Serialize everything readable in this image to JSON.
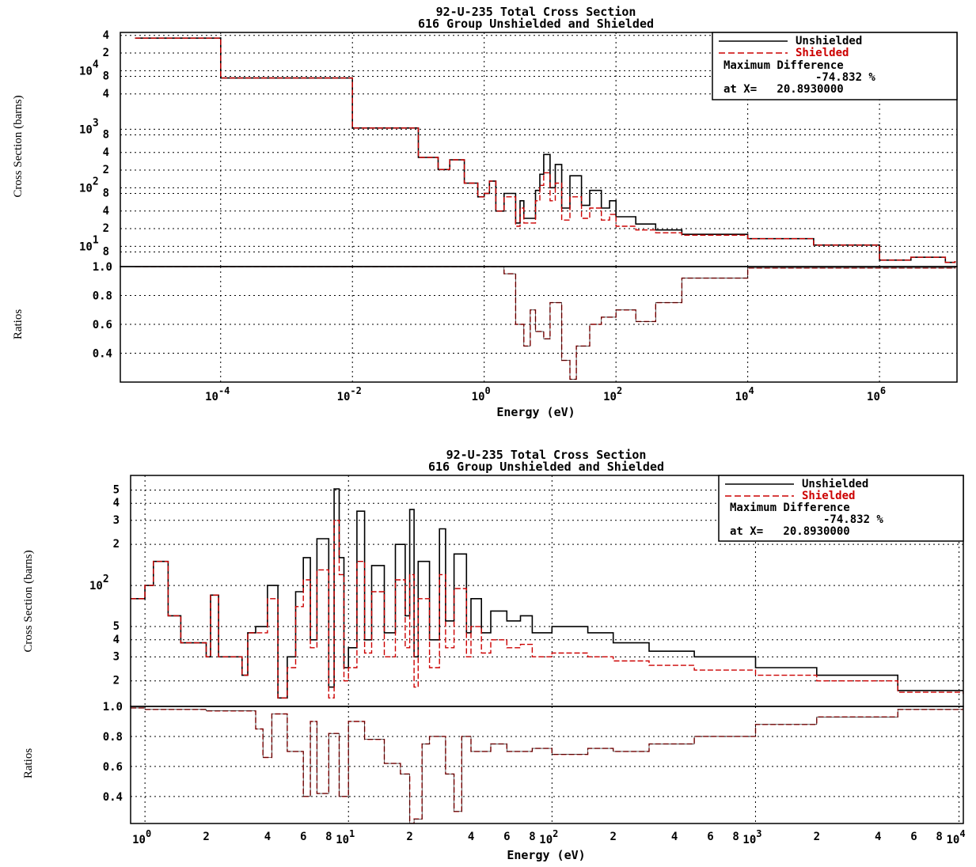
{
  "colors": {
    "unshielded": "#000000",
    "shielded": "#cc0000",
    "grid": "#000000"
  },
  "chart_data": [
    {
      "type": "line",
      "title": "92-U-235 Total Cross Section",
      "subtitle": "616 Group Unshielded and Shielded",
      "xlabel": "Energy (eV)",
      "ylabel": "Cross Section (barns)",
      "ratio_ylabel": "Ratios",
      "x_scale": "log",
      "y_scale": "log",
      "xlim": [
        3e-06,
        15000000
      ],
      "ylim": [
        4.5,
        45000
      ],
      "ratio_ylim": [
        0.2,
        1.0
      ],
      "grid": true,
      "legend_position": "top-right",
      "legend": {
        "unshielded": "Unshielded",
        "shielded": "Shielded",
        "line1": "Maximum Difference",
        "line2": "-74.832 %",
        "line3": "at X=   20.8930000"
      },
      "x_ticks": [
        {
          "base": "10",
          "exp": "-4",
          "v": 0.0001
        },
        {
          "base": "10",
          "exp": "-2",
          "v": 0.01
        },
        {
          "base": "10",
          "exp": "0",
          "v": 1
        },
        {
          "base": "10",
          "exp": "2",
          "v": 100
        },
        {
          "base": "10",
          "exp": "4",
          "v": 10000
        },
        {
          "base": "10",
          "exp": "6",
          "v": 1000000
        }
      ],
      "y_ticks": [
        {
          "base": "10",
          "exp": "1",
          "v": 10
        },
        {
          "base": "10",
          "exp": "2",
          "v": 100
        },
        {
          "base": "10",
          "exp": "3",
          "v": 1000
        },
        {
          "base": "10",
          "exp": "4",
          "v": 10000
        }
      ],
      "y_minor_labels": [
        {
          "t": "4",
          "v": 40000
        },
        {
          "t": "2",
          "v": 20000
        },
        {
          "t": "8",
          "v": 8000
        },
        {
          "t": "4",
          "v": 4000
        },
        {
          "t": "8",
          "v": 800
        },
        {
          "t": "4",
          "v": 400
        },
        {
          "t": "2",
          "v": 200
        },
        {
          "t": "8",
          "v": 80
        },
        {
          "t": "4",
          "v": 40
        },
        {
          "t": "2",
          "v": 20
        },
        {
          "t": "8",
          "v": 8
        }
      ],
      "ratio_ticks": [
        "1.0",
        "0.8",
        "0.6",
        "0.4"
      ],
      "ratio_tick_values": [
        1.0,
        0.8,
        0.6,
        0.4
      ],
      "series": [
        {
          "name": "Unshielded",
          "x": [
            5e-06,
            0.0001,
            0.01,
            0.1,
            0.2,
            0.3,
            0.5,
            0.8,
            1.0,
            1.2,
            1.5,
            2,
            3,
            3.5,
            4,
            6,
            7,
            8,
            10,
            12,
            15,
            20,
            30,
            40,
            60,
            80,
            100,
            200,
            400,
            1000,
            10000,
            100000,
            1000000,
            3000000,
            10000000,
            14000000
          ],
          "y": [
            36000,
            7500,
            1050,
            330,
            205,
            300,
            120,
            70,
            80,
            130,
            40,
            80,
            25,
            60,
            30,
            90,
            170,
            370,
            100,
            250,
            45,
            160,
            50,
            90,
            45,
            60,
            32,
            24,
            19,
            16,
            13.5,
            10.5,
            5.8,
            6.5,
            5.3,
            5.6
          ]
        },
        {
          "name": "Shielded",
          "x": [
            5e-06,
            0.0001,
            0.01,
            0.1,
            0.2,
            0.3,
            0.5,
            0.8,
            1.0,
            1.2,
            1.5,
            2,
            3,
            3.5,
            4,
            6,
            7,
            8,
            10,
            12,
            15,
            20,
            30,
            40,
            60,
            80,
            100,
            200,
            400,
            1000,
            10000,
            100000,
            1000000,
            3000000,
            10000000,
            14000000
          ],
          "y": [
            36000,
            7500,
            1050,
            330,
            205,
            300,
            120,
            70,
            80,
            130,
            40,
            70,
            22,
            45,
            25,
            60,
            110,
            180,
            60,
            120,
            28,
            70,
            30,
            45,
            28,
            35,
            22,
            19,
            17,
            15.5,
            13.5,
            10.5,
            5.8,
            6.5,
            5.3,
            5.6
          ]
        },
        {
          "name": "Ratio",
          "x": [
            5e-06,
            1,
            2,
            3,
            4,
            5,
            6,
            8,
            10,
            15,
            20,
            25,
            40,
            60,
            100,
            200,
            400,
            1000,
            10000,
            14000000
          ],
          "y": [
            1.0,
            1.0,
            0.95,
            0.6,
            0.45,
            0.7,
            0.55,
            0.5,
            0.75,
            0.35,
            0.22,
            0.45,
            0.6,
            0.65,
            0.7,
            0.62,
            0.75,
            0.92,
            0.99,
            1.0
          ]
        }
      ]
    },
    {
      "type": "line",
      "title": "92-U-235 Total Cross Section",
      "subtitle": "616 Group Unshielded and Shielded",
      "xlabel": "Energy (eV)",
      "ylabel": "Cross Section (barns)",
      "ratio_ylabel": "Ratios",
      "x_scale": "log",
      "y_scale": "log",
      "xlim": [
        0.85,
        10500
      ],
      "ylim": [
        13,
        640
      ],
      "ratio_ylim": [
        0.22,
        1.0
      ],
      "grid": true,
      "legend_position": "top-right",
      "legend": {
        "unshielded": "Unshielded",
        "shielded": "Shielded",
        "line1": "Maximum Difference",
        "line2": "-74.832 %",
        "line3": "at X=   20.8930000"
      },
      "x_ticks": [
        {
          "base": "10",
          "exp": "0",
          "v": 1
        },
        {
          "base": "10",
          "exp": "1",
          "v": 10
        },
        {
          "base": "10",
          "exp": "2",
          "v": 100
        },
        {
          "base": "10",
          "exp": "3",
          "v": 1000
        },
        {
          "base": "10",
          "exp": "4",
          "v": 10000
        }
      ],
      "x_minor_labels": [
        {
          "t": "2",
          "v": 2
        },
        {
          "t": "4",
          "v": 4
        },
        {
          "t": "6",
          "v": 6
        },
        {
          "t": "8",
          "v": 8
        },
        {
          "t": "2",
          "v": 20
        },
        {
          "t": "4",
          "v": 40
        },
        {
          "t": "6",
          "v": 60
        },
        {
          "t": "8",
          "v": 80
        },
        {
          "t": "2",
          "v": 200
        },
        {
          "t": "4",
          "v": 400
        },
        {
          "t": "6",
          "v": 600
        },
        {
          "t": "8",
          "v": 800
        },
        {
          "t": "2",
          "v": 2000
        },
        {
          "t": "4",
          "v": 4000
        },
        {
          "t": "6",
          "v": 6000
        },
        {
          "t": "8",
          "v": 8000
        }
      ],
      "y_ticks": [
        {
          "base": "10",
          "exp": "2",
          "v": 100
        }
      ],
      "y_minor_labels": [
        {
          "t": "5",
          "v": 500
        },
        {
          "t": "4",
          "v": 400
        },
        {
          "t": "3",
          "v": 300
        },
        {
          "t": "2",
          "v": 200
        },
        {
          "t": "5",
          "v": 50
        },
        {
          "t": "4",
          "v": 40
        },
        {
          "t": "3",
          "v": 30
        },
        {
          "t": "2",
          "v": 20
        }
      ],
      "ratio_ticks": [
        "1.0",
        "0.8",
        "0.6",
        "0.4"
      ],
      "ratio_tick_values": [
        1.0,
        0.8,
        0.6,
        0.4
      ],
      "series": [
        {
          "name": "Unshielded",
          "x": [
            0.85,
            1.0,
            1.1,
            1.3,
            1.5,
            2,
            2.1,
            2.3,
            3,
            3.2,
            3.5,
            4,
            4.5,
            5,
            5.5,
            6,
            6.5,
            7,
            8,
            8.5,
            9,
            9.5,
            10,
            11,
            12,
            13,
            15,
            17,
            19,
            20,
            21,
            22,
            25,
            28,
            30,
            33,
            38,
            40,
            45,
            50,
            60,
            70,
            80,
            100,
            150,
            200,
            300,
            500,
            1000,
            2000,
            5000,
            10500
          ],
          "y": [
            80,
            100,
            150,
            60,
            38,
            30,
            85,
            30,
            22,
            45,
            50,
            100,
            15,
            30,
            90,
            160,
            40,
            220,
            18,
            510,
            160,
            25,
            35,
            350,
            40,
            140,
            45,
            200,
            60,
            360,
            30,
            150,
            40,
            260,
            55,
            170,
            45,
            80,
            45,
            65,
            55,
            60,
            45,
            50,
            45,
            38,
            33,
            30,
            25,
            22,
            17,
            16
          ]
        },
        {
          "name": "Shielded",
          "x": [
            0.85,
            1.0,
            1.1,
            1.3,
            1.5,
            2,
            2.1,
            2.3,
            3,
            3.2,
            3.5,
            4,
            4.5,
            5,
            5.5,
            6,
            6.5,
            7,
            8,
            8.5,
            9,
            9.5,
            10,
            11,
            12,
            13,
            15,
            17,
            19,
            20,
            21,
            22,
            25,
            28,
            30,
            33,
            38,
            40,
            45,
            50,
            60,
            70,
            80,
            100,
            150,
            200,
            300,
            500,
            1000,
            2000,
            5000,
            10500
          ],
          "y": [
            80,
            100,
            150,
            60,
            38,
            30,
            85,
            30,
            22,
            45,
            45,
            80,
            15,
            25,
            70,
            110,
            35,
            130,
            15,
            300,
            120,
            20,
            25,
            150,
            32,
            90,
            30,
            110,
            35,
            120,
            18,
            80,
            25,
            120,
            35,
            95,
            30,
            50,
            32,
            40,
            35,
            37,
            30,
            32,
            30,
            28,
            26,
            24,
            22,
            20,
            16.5,
            16
          ]
        },
        {
          "name": "Ratio",
          "x": [
            0.85,
            1.0,
            2,
            3.5,
            3.8,
            4.2,
            5,
            6,
            6.5,
            7,
            8,
            9,
            10,
            12,
            15,
            18,
            20,
            21,
            23,
            25,
            30,
            33,
            36,
            40,
            50,
            60,
            80,
            100,
            150,
            200,
            300,
            500,
            1000,
            2000,
            5000,
            10500
          ],
          "y": [
            0.99,
            0.98,
            0.97,
            0.85,
            0.66,
            0.95,
            0.7,
            0.4,
            0.9,
            0.42,
            0.82,
            0.4,
            0.9,
            0.78,
            0.62,
            0.55,
            0.22,
            0.25,
            0.75,
            0.8,
            0.55,
            0.3,
            0.8,
            0.7,
            0.75,
            0.7,
            0.72,
            0.68,
            0.72,
            0.7,
            0.75,
            0.8,
            0.88,
            0.93,
            0.98,
            0.99
          ]
        }
      ]
    }
  ]
}
